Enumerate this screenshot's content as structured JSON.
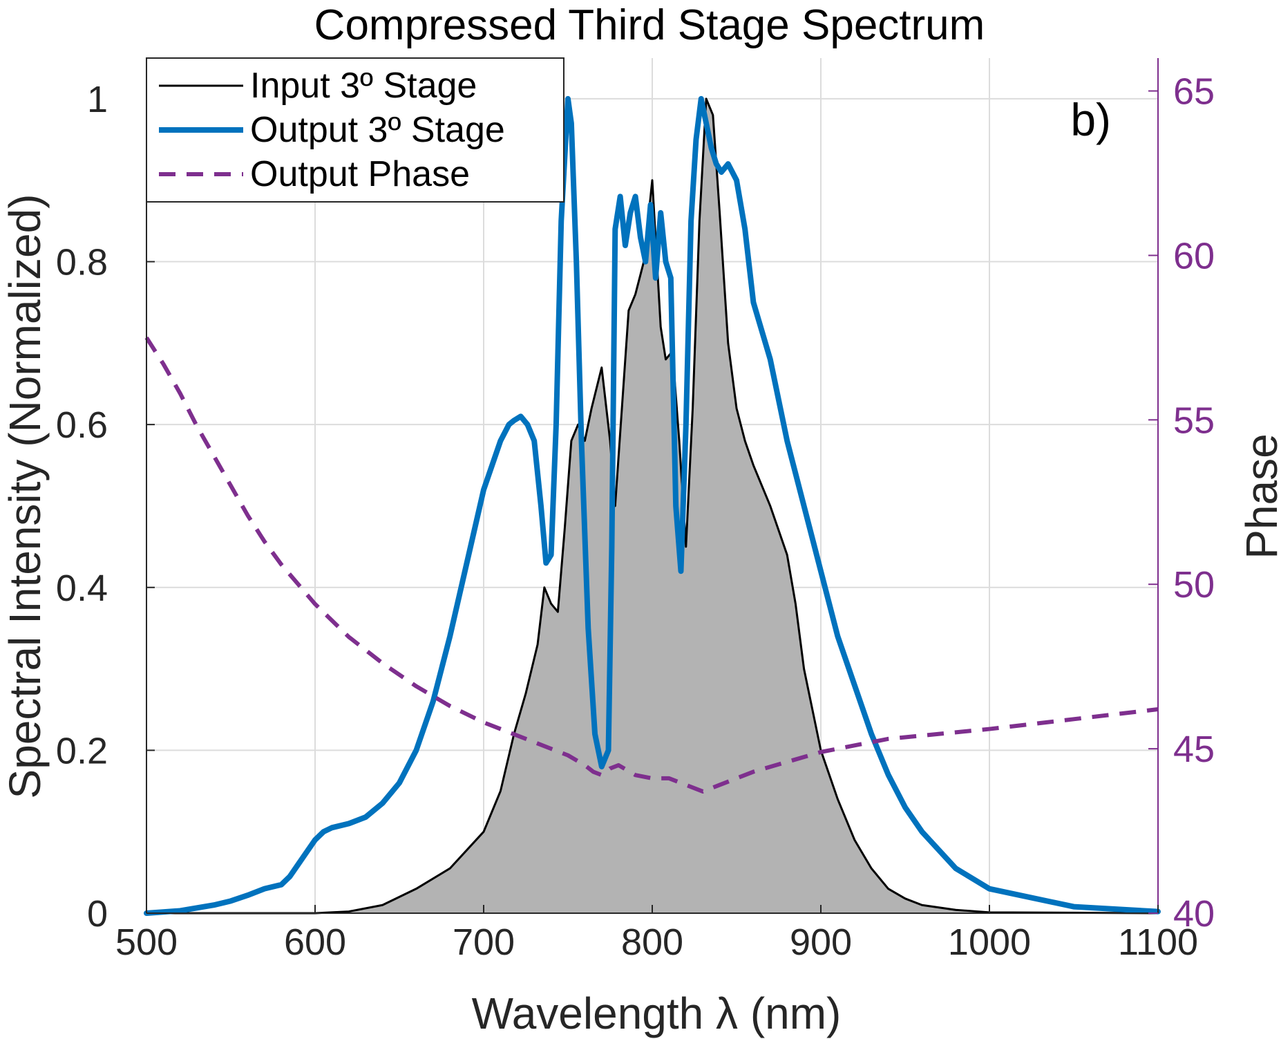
{
  "chart_data": {
    "type": "line",
    "title": "Compressed Third Stage Spectrum",
    "xlabel": "Wavelength λ (nm)",
    "ylabel": "Spectral Intensity (Normalized)",
    "y2label": "Phase",
    "annotation": "b)",
    "xlim": [
      500,
      1100
    ],
    "ylim": [
      0,
      1.05
    ],
    "y2lim": [
      40,
      66
    ],
    "xticks": [
      500,
      600,
      700,
      800,
      900,
      1000,
      1100
    ],
    "yticks": [
      0,
      0.2,
      0.4,
      0.6,
      0.8,
      1
    ],
    "ytick_labels": [
      "0",
      "0.2",
      "0.4",
      "0.6",
      "0.8",
      "1"
    ],
    "y2ticks": [
      40,
      45,
      50,
      55,
      60,
      65
    ],
    "grid": true,
    "legend_position": "top-left",
    "colors": {
      "input": "#000000",
      "input_fill": "#b3b3b3",
      "output": "#0072bd",
      "phase": "#7e2f8e"
    },
    "series": [
      {
        "name": "Input 3º Stage",
        "axis": "left",
        "style": "solid-filled",
        "x": [
          500,
          600,
          620,
          640,
          660,
          680,
          700,
          710,
          718,
          725,
          732,
          736,
          740,
          744,
          748,
          752,
          756,
          760,
          764,
          770,
          775,
          778,
          782,
          786,
          790,
          795,
          800,
          805,
          808,
          812,
          816,
          820,
          824,
          828,
          832,
          836,
          840,
          845,
          850,
          855,
          860,
          870,
          880,
          885,
          890,
          900,
          910,
          920,
          930,
          940,
          950,
          960,
          980,
          1000,
          1100
        ],
        "y": [
          0,
          0,
          0.002,
          0.01,
          0.03,
          0.055,
          0.1,
          0.15,
          0.22,
          0.27,
          0.33,
          0.4,
          0.38,
          0.37,
          0.47,
          0.58,
          0.6,
          0.58,
          0.62,
          0.67,
          0.58,
          0.5,
          0.62,
          0.74,
          0.76,
          0.8,
          0.9,
          0.72,
          0.68,
          0.69,
          0.58,
          0.45,
          0.62,
          0.85,
          1.0,
          0.98,
          0.86,
          0.7,
          0.62,
          0.58,
          0.55,
          0.5,
          0.44,
          0.38,
          0.3,
          0.2,
          0.14,
          0.09,
          0.055,
          0.03,
          0.018,
          0.01,
          0.004,
          0.001,
          0
        ]
      },
      {
        "name": "Output 3º Stage",
        "axis": "left",
        "style": "solid-thick",
        "x": [
          500,
          520,
          540,
          550,
          560,
          570,
          580,
          585,
          590,
          595,
          600,
          605,
          610,
          620,
          630,
          640,
          650,
          660,
          670,
          680,
          690,
          700,
          710,
          715,
          718,
          722,
          726,
          730,
          734,
          737,
          740,
          743,
          746,
          750,
          752,
          755,
          758,
          762,
          766,
          770,
          774,
          776,
          778,
          781,
          784,
          787,
          790,
          793,
          796,
          799,
          802,
          805,
          808,
          811,
          814,
          817,
          820,
          823,
          826,
          829,
          832,
          835,
          838,
          841,
          845,
          850,
          855,
          860,
          870,
          880,
          890,
          900,
          910,
          920,
          930,
          940,
          950,
          960,
          980,
          1000,
          1050,
          1100
        ],
        "y": [
          0,
          0.003,
          0.01,
          0.015,
          0.022,
          0.03,
          0.035,
          0.045,
          0.06,
          0.075,
          0.09,
          0.1,
          0.105,
          0.11,
          0.118,
          0.135,
          0.16,
          0.2,
          0.26,
          0.34,
          0.43,
          0.52,
          0.58,
          0.6,
          0.605,
          0.61,
          0.6,
          0.58,
          0.5,
          0.43,
          0.44,
          0.6,
          0.85,
          1.0,
          0.97,
          0.8,
          0.58,
          0.35,
          0.22,
          0.18,
          0.2,
          0.45,
          0.84,
          0.88,
          0.82,
          0.86,
          0.88,
          0.83,
          0.8,
          0.87,
          0.78,
          0.86,
          0.8,
          0.78,
          0.5,
          0.42,
          0.6,
          0.85,
          0.95,
          1.0,
          0.97,
          0.94,
          0.92,
          0.91,
          0.92,
          0.9,
          0.84,
          0.75,
          0.68,
          0.58,
          0.5,
          0.42,
          0.34,
          0.28,
          0.22,
          0.17,
          0.13,
          0.1,
          0.055,
          0.03,
          0.008,
          0.002
        ]
      },
      {
        "name": "Output Phase",
        "axis": "right",
        "style": "dashed",
        "x": [
          500,
          510,
          520,
          530,
          540,
          550,
          560,
          570,
          580,
          590,
          600,
          620,
          640,
          660,
          680,
          700,
          720,
          740,
          750,
          760,
          765,
          770,
          775,
          780,
          790,
          800,
          810,
          820,
          830,
          835,
          840,
          850,
          860,
          880,
          900,
          920,
          940,
          960,
          980,
          1000,
          1050,
          1100
        ],
        "y": [
          57.5,
          56.7,
          55.8,
          54.8,
          53.9,
          53.0,
          52.1,
          51.3,
          50.6,
          50.0,
          49.4,
          48.4,
          47.6,
          46.9,
          46.3,
          45.8,
          45.4,
          45.0,
          44.8,
          44.5,
          44.3,
          44.2,
          44.4,
          44.5,
          44.2,
          44.1,
          44.1,
          43.9,
          43.7,
          43.8,
          43.9,
          44.1,
          44.3,
          44.6,
          44.9,
          45.1,
          45.3,
          45.4,
          45.5,
          45.6,
          45.9,
          46.2
        ]
      }
    ]
  }
}
